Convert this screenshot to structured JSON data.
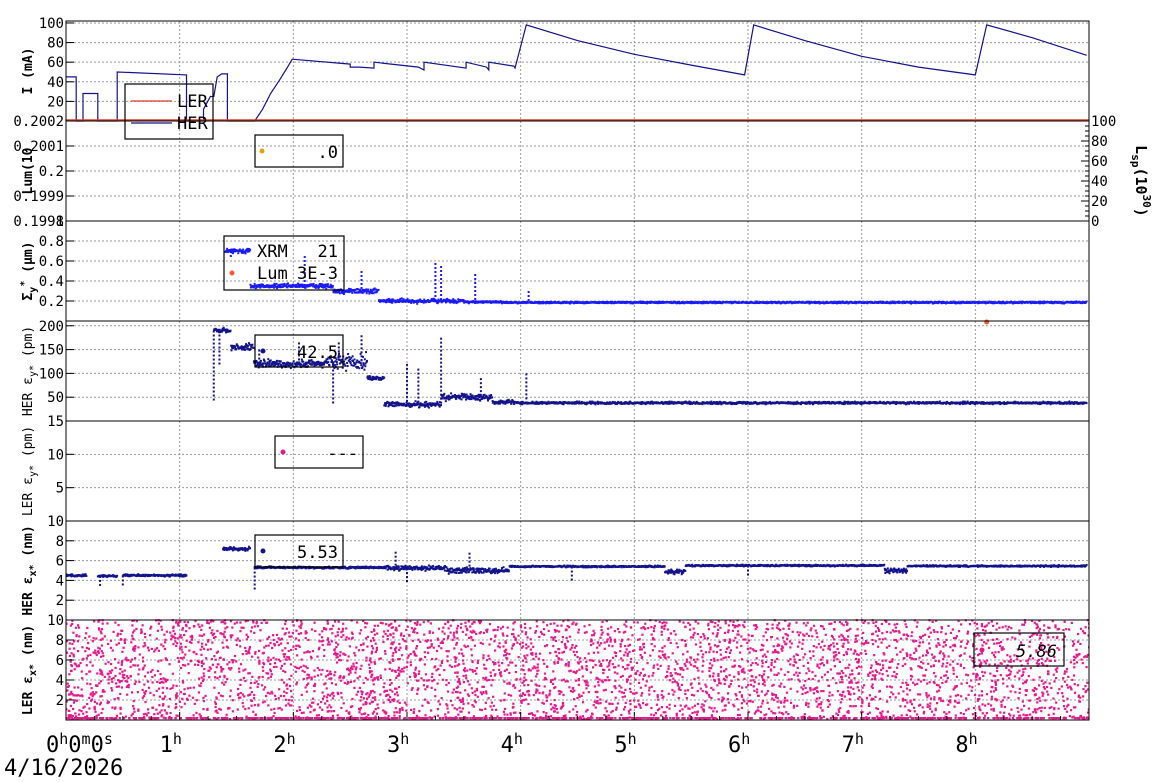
{
  "date_label": "4/16/2026",
  "chart_data": [
    {
      "type": "line",
      "ylabel": "I (mA)",
      "yticks": [
        "20",
        "40",
        "60",
        "80",
        "100"
      ],
      "ylim": [
        0,
        102
      ],
      "grid": true,
      "legend": {
        "placement": "top-left",
        "entries": [
          "LER",
          "HER"
        ]
      },
      "series": [
        {
          "name": "LER",
          "color": "#e03c2c"
        },
        {
          "name": "HER",
          "color": "#13138c",
          "points": [
            [
              0,
              45
            ],
            [
              0.09,
              45
            ],
            [
              0.09,
              0
            ],
            [
              0.15,
              0
            ],
            [
              0.15,
              28
            ],
            [
              0.28,
              28
            ],
            [
              0.28,
              0
            ],
            [
              0.45,
              0
            ],
            [
              0.45,
              50
            ],
            [
              1.06,
              47
            ],
            [
              1.06,
              0
            ],
            [
              1.21,
              0
            ],
            [
              1.21,
              12
            ],
            [
              1.27,
              25
            ],
            [
              1.3,
              25
            ],
            [
              1.33,
              45
            ],
            [
              1.37,
              48
            ],
            [
              1.42,
              48
            ],
            [
              1.42,
              0
            ],
            [
              1.66,
              0
            ],
            [
              1.73,
              12
            ],
            [
              1.8,
              28
            ],
            [
              1.88,
              42
            ],
            [
              1.95,
              55
            ],
            [
              1.99,
              63
            ],
            [
              2.5,
              58
            ],
            [
              2.5,
              55
            ],
            [
              2.58,
              55
            ],
            [
              2.71,
              54
            ],
            [
              2.71,
              60
            ],
            [
              3.1,
              55
            ],
            [
              3.15,
              52
            ],
            [
              3.15,
              60
            ],
            [
              3.52,
              54
            ],
            [
              3.52,
              60
            ],
            [
              3.7,
              55
            ],
            [
              3.72,
              52
            ],
            [
              3.72,
              60
            ],
            [
              3.94,
              56
            ],
            [
              3.95,
              54
            ],
            [
              4.05,
              98
            ],
            [
              4.5,
              82
            ],
            [
              5.0,
              68
            ],
            [
              5.5,
              57
            ],
            [
              5.97,
              47
            ],
            [
              6.05,
              98
            ],
            [
              6.5,
              82
            ],
            [
              7.0,
              66
            ],
            [
              7.5,
              55
            ],
            [
              8.0,
              47
            ],
            [
              8.1,
              98
            ],
            [
              8.5,
              85
            ],
            [
              8.98,
              67
            ]
          ]
        }
      ]
    },
    {
      "type": "scatter",
      "ylabel": "Lum(10",
      "yticks": [
        "0.1998",
        "0.1999",
        "0.2",
        "0.2001",
        "0.2002"
      ],
      "ylim": [
        0.1998,
        0.2002
      ],
      "y2label": "L",
      "y2_sub": "sp",
      "y2_unit": "(10",
      "y2_sup": "30",
      "y2_close": ")",
      "y2ticks": [
        "0",
        "20",
        "40",
        "60",
        "80",
        "100"
      ],
      "y2lim": [
        0,
        100
      ],
      "legend": {
        "placement": "top-left",
        "entries": [
          {
            "marker_color": "#e8a000",
            "value": ".0"
          }
        ]
      }
    },
    {
      "type": "scatter",
      "ylabel": "Σ",
      "ylabel_sub": "y",
      "ylabel_sup": "*",
      "ylabel_unit": "(μm)",
      "yticks": [
        "0.2",
        "0.4",
        "0.6",
        "0.8",
        "1"
      ],
      "ylim": [
        0,
        1
      ],
      "legend": {
        "placement": "top-left",
        "entries": [
          {
            "name": "XRM",
            "value": "21",
            "color": "#1a1aff"
          },
          {
            "name": "Lum",
            "value": "3E-3",
            "color": "#ff5533"
          }
        ]
      },
      "series": [
        {
          "name": "XRM",
          "color": "#1a1aff",
          "segments": [
            [
              1.4,
              1.62,
              0.7,
              0.04
            ],
            [
              1.62,
              2.35,
              0.35,
              0.03
            ],
            [
              2.35,
              2.75,
              0.3,
              0.04
            ],
            [
              2.75,
              3.5,
              0.2,
              0.03
            ],
            [
              3.5,
              3.85,
              0.19,
              0.015
            ],
            [
              3.85,
              8.98,
              0.185,
              0.012
            ]
          ],
          "spikes": [
            [
              1.45,
              0.63
            ],
            [
              2.1,
              0.65
            ],
            [
              2.6,
              0.5
            ],
            [
              3.25,
              0.58
            ],
            [
              3.3,
              0.55
            ],
            [
              3.6,
              0.47
            ],
            [
              4.07,
              0.3
            ]
          ]
        },
        {
          "name": "Lum",
          "color": "#ff5533",
          "points": [
            [
              8.1,
              -0.01
            ]
          ]
        }
      ]
    },
    {
      "type": "scatter",
      "ylabel": "HER ε",
      "ylabel_sub": "y*",
      "ylabel_unit": "(pm)",
      "yticks": [
        "50",
        "100",
        "150",
        "200"
      ],
      "ylim": [
        0,
        210
      ],
      "legend": {
        "placement": "top-left",
        "entries": [
          {
            "value": "42.5",
            "color": "#13138c"
          }
        ]
      },
      "series": [
        {
          "name": "HER",
          "color": "#13138c",
          "segments": [
            [
              1.3,
              1.45,
              190,
              8
            ],
            [
              1.45,
              1.65,
              155,
              10
            ],
            [
              1.65,
              2.3,
              120,
              12
            ],
            [
              2.3,
              2.65,
              125,
              25
            ],
            [
              2.65,
              2.8,
              90,
              6
            ],
            [
              2.8,
              3.3,
              35,
              8
            ],
            [
              3.3,
              3.75,
              50,
              10
            ],
            [
              3.75,
              3.95,
              40,
              6
            ],
            [
              3.95,
              8.98,
              38,
              3.5
            ]
          ],
          "spikes": [
            [
              1.3,
              40
            ],
            [
              1.35,
              120
            ],
            [
              1.7,
              150
            ],
            [
              2.05,
              165
            ],
            [
              2.35,
              35
            ],
            [
              2.4,
              165
            ],
            [
              2.6,
              180
            ],
            [
              3.0,
              120
            ],
            [
              3.1,
              110
            ],
            [
              3.3,
              175
            ],
            [
              3.65,
              90
            ],
            [
              4.05,
              100
            ]
          ]
        }
      ]
    },
    {
      "type": "scatter",
      "ylabel": "LER ε",
      "ylabel_sub": "y*",
      "ylabel_unit": "(pm)",
      "yticks": [
        "5",
        "10",
        "15"
      ],
      "ylim": [
        0,
        15
      ],
      "legend": {
        "placement": "top-left",
        "entries": [
          {
            "value": "---",
            "color": "#e8188c"
          }
        ]
      }
    },
    {
      "type": "scatter",
      "ylabel": "HER ε",
      "ylabel_sub": "x*",
      "ylabel_unit": "(nm)",
      "yticks": [
        "2",
        "4",
        "6",
        "8",
        "10"
      ],
      "ylim": [
        0,
        10
      ],
      "legend": {
        "placement": "top-left",
        "entries": [
          {
            "value": "5.53",
            "color": "#13138c"
          }
        ]
      },
      "series": [
        {
          "name": "HER",
          "color": "#13138c",
          "segments": [
            [
              0,
              0.18,
              4.5,
              0.15
            ],
            [
              0.28,
              0.45,
              4.45,
              0.15
            ],
            [
              0.5,
              1.06,
              4.5,
              0.15
            ],
            [
              1.38,
              1.62,
              7.2,
              0.3
            ],
            [
              1.66,
              2.8,
              5.3,
              0.15
            ],
            [
              2.8,
              3.35,
              5.25,
              0.35
            ],
            [
              3.35,
              3.9,
              5.0,
              0.4
            ],
            [
              3.9,
              5.27,
              5.4,
              0.12
            ],
            [
              5.27,
              5.45,
              4.9,
              0.35
            ],
            [
              5.45,
              7.2,
              5.5,
              0.12
            ],
            [
              7.2,
              7.4,
              5.0,
              0.35
            ],
            [
              7.4,
              8.98,
              5.45,
              0.12
            ]
          ],
          "spikes": [
            [
              0.3,
              3.6
            ],
            [
              0.5,
              3.6
            ],
            [
              1.66,
              3.2
            ],
            [
              2.9,
              6.9
            ],
            [
              3.55,
              6.8
            ],
            [
              3.0,
              4.0
            ],
            [
              4.45,
              4.0
            ],
            [
              6.0,
              4.3
            ]
          ]
        }
      ]
    },
    {
      "type": "scatter",
      "ylabel": "LER ε",
      "ylabel_sub": "x*",
      "ylabel_unit": "(nm)",
      "yticks": [
        "2",
        "4",
        "6",
        "8",
        "10"
      ],
      "ylim": [
        0,
        10
      ],
      "legend": {
        "placement": "top-right",
        "entries": [
          {
            "value": "5.86",
            "color": "#e8188c"
          }
        ]
      },
      "series": [
        {
          "name": "LER",
          "color": "#e8188c",
          "distribution": "uniform",
          "range": [
            0,
            10
          ]
        }
      ]
    }
  ],
  "xaxis": {
    "xlim": [
      0,
      9
    ],
    "ticks": [
      {
        "value": 0,
        "label": "0",
        "sup1": "h",
        "mid": "0",
        "sup2": "m",
        "mid2": "0",
        "sup3": "s"
      },
      {
        "value": 1,
        "label": "1",
        "sup1": "h"
      },
      {
        "value": 2,
        "label": "2",
        "sup1": "h"
      },
      {
        "value": 3,
        "label": "3",
        "sup1": "h"
      },
      {
        "value": 4,
        "label": "4",
        "sup1": "h"
      },
      {
        "value": 5,
        "label": "5",
        "sup1": "h"
      },
      {
        "value": 6,
        "label": "6",
        "sup1": "h"
      },
      {
        "value": 7,
        "label": "7",
        "sup1": "h"
      },
      {
        "value": 8,
        "label": "8",
        "sup1": "h"
      }
    ]
  }
}
